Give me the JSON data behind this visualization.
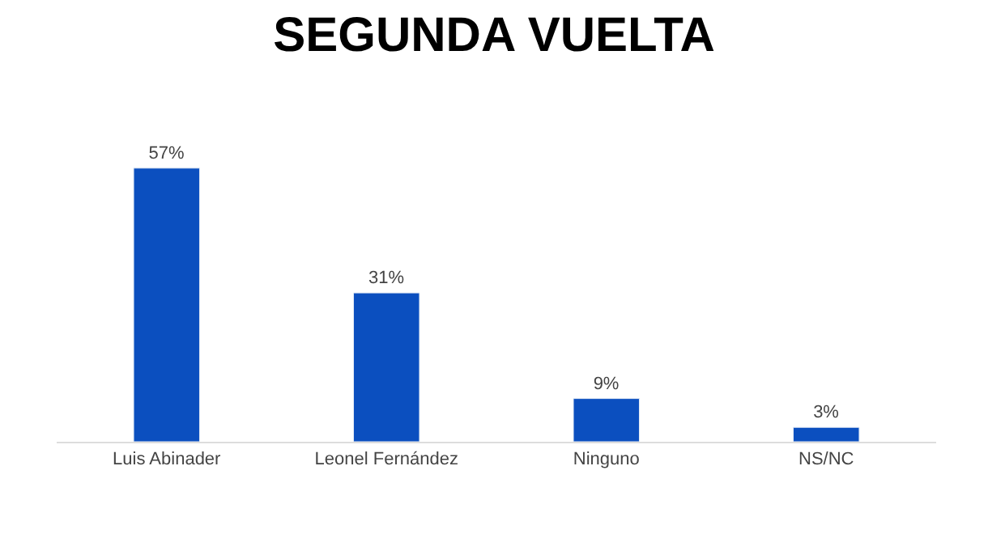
{
  "chart_data": {
    "type": "bar",
    "title": "SEGUNDA VUELTA",
    "categories": [
      "Luis Abinader",
      "Leonel Fernández",
      "Ninguno",
      "NS/NC"
    ],
    "values": [
      57,
      31,
      9,
      3
    ],
    "value_labels": [
      "57%",
      "31%",
      "9%",
      "3%"
    ],
    "color": "#0b4fbf",
    "legend": false,
    "tick_labels": "x"
  }
}
